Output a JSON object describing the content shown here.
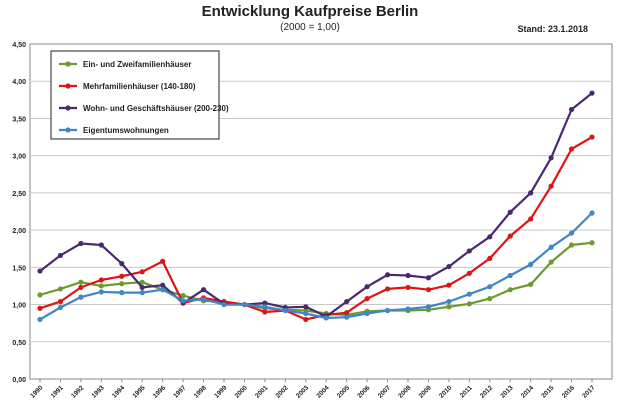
{
  "header": {
    "title": "Entwicklung Kaufpreise Berlin",
    "subtitle": "(2000 = 1,00)",
    "stand": "Stand: 23.1.2018"
  },
  "chart_data": {
    "type": "line",
    "title": "Entwicklung Kaufpreise Berlin",
    "subtitle": "(2000 = 1,00)",
    "xlabel": "",
    "ylabel": "",
    "ylim": [
      0,
      4.5
    ],
    "y_ticks": [
      "0,00",
      "0,50",
      "1,00",
      "1,50",
      "2,00",
      "2,50",
      "3,00",
      "3,50",
      "4,00",
      "4,50"
    ],
    "grid": true,
    "legend_position": "top-left",
    "x": [
      "1990",
      "1991",
      "1992",
      "1993",
      "1994",
      "1995",
      "1996",
      "1997",
      "1998",
      "1999",
      "2000",
      "2001",
      "2002",
      "2003",
      "2004",
      "2005",
      "2006",
      "2007",
      "2008",
      "2009",
      "2010",
      "2011",
      "2012",
      "2013",
      "2014",
      "2015",
      "2016",
      "2017"
    ],
    "series": [
      {
        "name": "Ein- und Zweifamilienhäuser",
        "color": "#6b9a30",
        "values": [
          1.13,
          1.21,
          1.3,
          1.25,
          1.28,
          1.3,
          1.2,
          1.12,
          1.05,
          1.04,
          1.0,
          0.95,
          0.93,
          0.92,
          0.88,
          0.86,
          0.91,
          0.92,
          0.92,
          0.93,
          0.97,
          1.01,
          1.08,
          1.2,
          1.27,
          1.57,
          1.8,
          1.83
        ]
      },
      {
        "name": "Mehrfamilienhäuser (140-180)",
        "color": "#dd1515",
        "values": [
          0.95,
          1.04,
          1.23,
          1.33,
          1.38,
          1.44,
          1.58,
          1.02,
          1.09,
          1.04,
          1.0,
          0.9,
          0.92,
          0.8,
          0.86,
          0.89,
          1.08,
          1.21,
          1.23,
          1.2,
          1.26,
          1.42,
          1.62,
          1.92,
          2.15,
          2.59,
          3.09,
          3.25
        ]
      },
      {
        "name": "Wohn- und Geschäftshäuser (200-230)",
        "color": "#4a2a6e",
        "values": [
          1.45,
          1.66,
          1.82,
          1.8,
          1.55,
          1.23,
          1.26,
          1.02,
          1.2,
          1.01,
          1.0,
          1.02,
          0.96,
          0.97,
          0.84,
          1.04,
          1.24,
          1.4,
          1.39,
          1.36,
          1.51,
          1.72,
          1.91,
          2.24,
          2.5,
          2.97,
          3.62,
          3.84
        ]
      },
      {
        "name": "Eigentumswohnungen",
        "color": "#3f86c8",
        "values": [
          0.8,
          0.96,
          1.1,
          1.17,
          1.16,
          1.16,
          1.2,
          1.05,
          1.07,
          1.0,
          1.0,
          0.97,
          0.92,
          0.88,
          0.82,
          0.83,
          0.88,
          0.92,
          0.94,
          0.97,
          1.04,
          1.14,
          1.24,
          1.39,
          1.54,
          1.77,
          1.96,
          2.23
        ]
      }
    ]
  }
}
